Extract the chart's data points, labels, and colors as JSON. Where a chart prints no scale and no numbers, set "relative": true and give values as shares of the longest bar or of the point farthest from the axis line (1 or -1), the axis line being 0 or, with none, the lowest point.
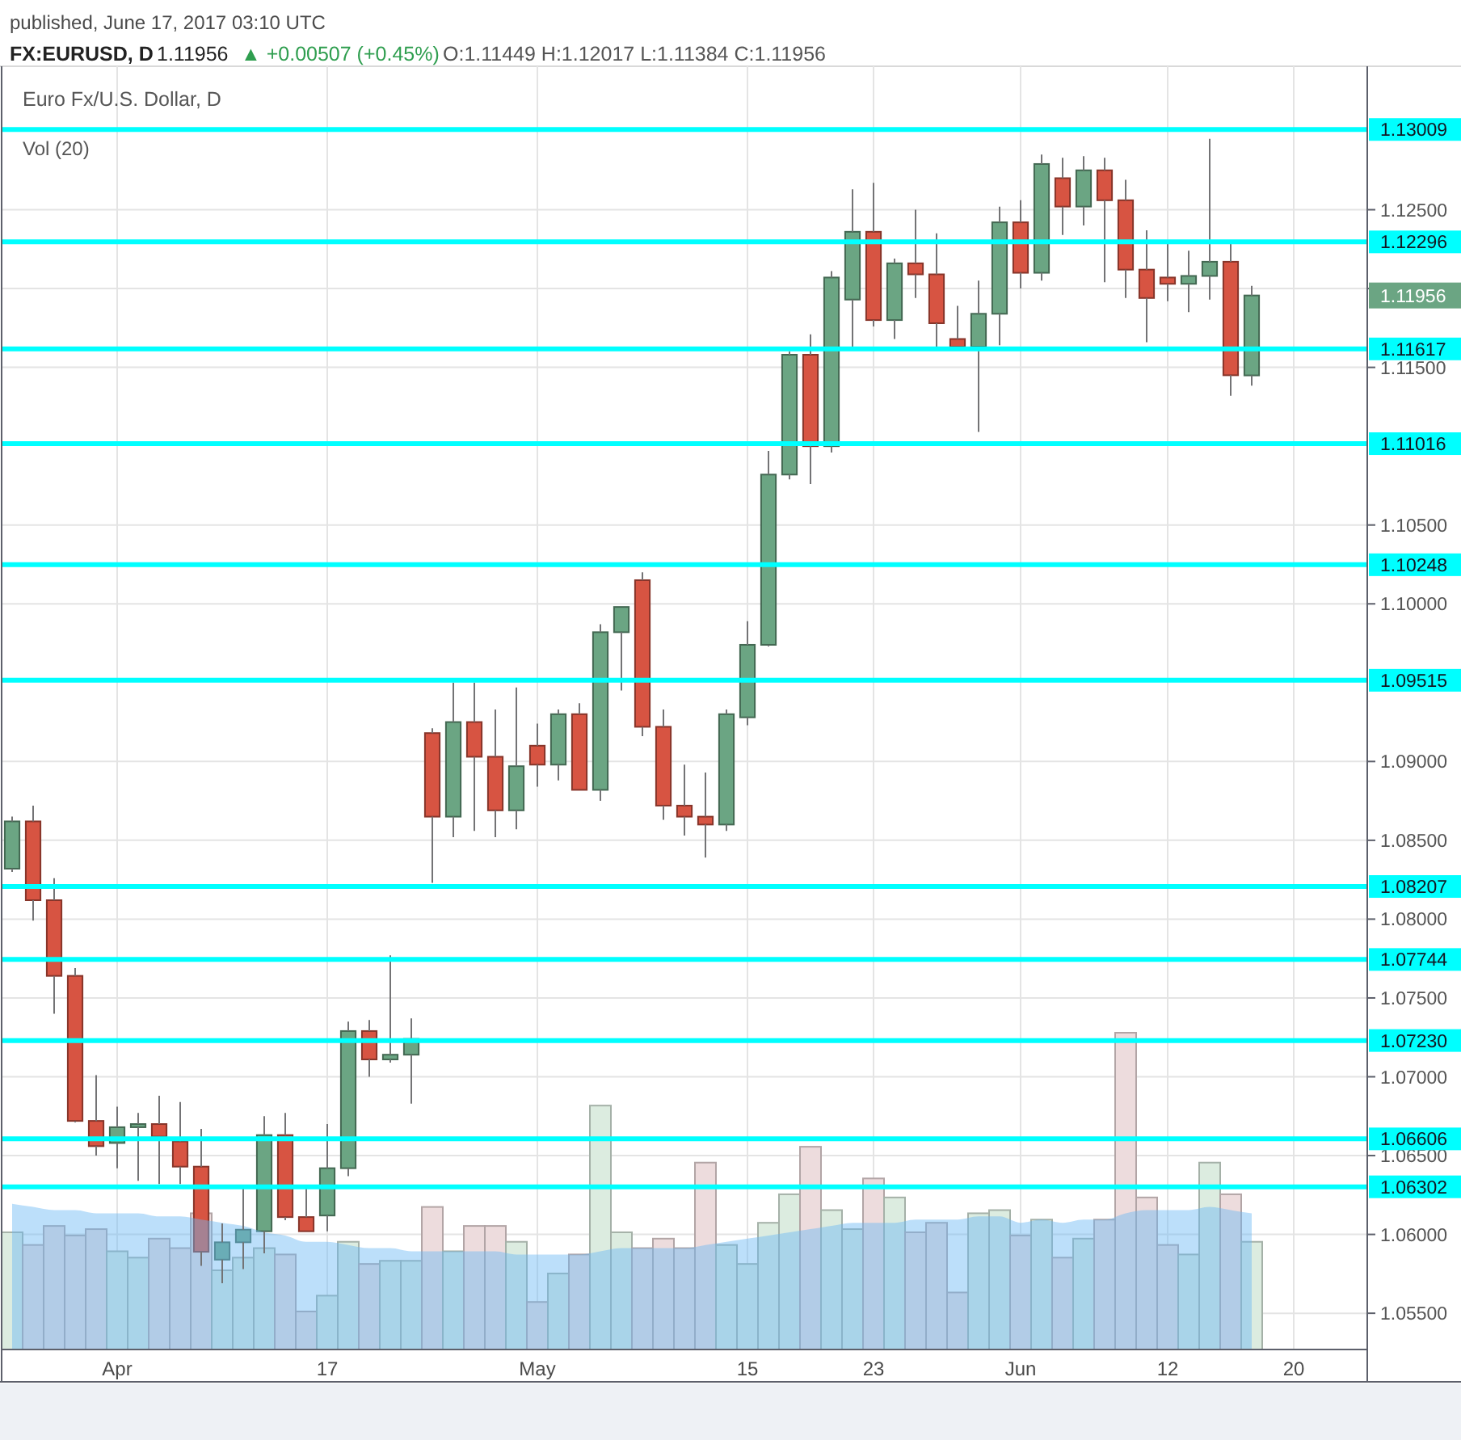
{
  "chart_data": [
    {
      "type": "candlestick",
      "title": "FX:EURUSD, D",
      "subtitle": "Euro Fx/U.S. Dollar, D",
      "categories": [
        null,
        null,
        null,
        null,
        null,
        "Apr",
        null,
        null,
        null,
        null,
        null,
        null,
        null,
        null,
        null,
        "17",
        null,
        null,
        null,
        null,
        null,
        null,
        null,
        null,
        null,
        "May",
        null,
        null,
        null,
        null,
        null,
        null,
        null,
        null,
        null,
        "15",
        null,
        null,
        null,
        null,
        null,
        "23",
        null,
        null,
        null,
        null,
        null,
        null,
        "Jun",
        null,
        null,
        null,
        null,
        null,
        null,
        "12",
        null,
        null,
        null,
        null,
        null,
        "20",
        null,
        null,
        null
      ],
      "ohlc": [
        [
          1.0832,
          1.0865,
          1.083,
          1.0862
        ],
        [
          1.0862,
          1.0872,
          1.0799,
          1.0812
        ],
        [
          1.0812,
          1.0826,
          1.074,
          1.0764
        ],
        [
          1.0764,
          1.0769,
          1.0671,
          1.0672
        ],
        [
          1.0672,
          1.0701,
          1.065,
          1.0656
        ],
        [
          1.0658,
          1.0681,
          1.0642,
          1.0668
        ],
        [
          1.0668,
          1.0677,
          1.0634,
          1.067
        ],
        [
          1.067,
          1.0688,
          1.0632,
          1.0662
        ],
        [
          1.0659,
          1.0684,
          1.0632,
          1.0643
        ],
        [
          1.0643,
          1.0667,
          1.058,
          1.0589
        ],
        [
          1.0584,
          1.0607,
          1.0569,
          1.0595
        ],
        [
          1.0595,
          1.0629,
          1.0578,
          1.0603
        ],
        [
          1.0602,
          1.0675,
          1.0588,
          1.0663
        ],
        [
          1.0663,
          1.0677,
          1.0609,
          1.0611
        ],
        [
          1.0611,
          1.0629,
          1.0602,
          1.0602
        ],
        [
          1.0612,
          1.067,
          1.0602,
          1.0642
        ],
        [
          1.0642,
          1.0735,
          1.0637,
          1.0729
        ],
        [
          1.0729,
          1.0736,
          1.07,
          1.0711
        ],
        [
          1.0711,
          1.0777,
          1.0709,
          1.0714
        ],
        [
          1.0714,
          1.0737,
          1.0683,
          1.0724
        ],
        [
          1.0918,
          1.0921,
          1.0823,
          1.0865
        ],
        [
          1.0865,
          1.095,
          1.0852,
          1.0925
        ],
        [
          1.0925,
          1.095,
          1.0856,
          1.0903
        ],
        [
          1.0903,
          1.0933,
          1.0852,
          1.0869
        ],
        [
          1.0869,
          1.0947,
          1.0857,
          1.0897
        ],
        [
          1.091,
          1.0924,
          1.0884,
          1.0898
        ],
        [
          1.0898,
          1.0933,
          1.0888,
          1.093
        ],
        [
          1.093,
          1.0937,
          1.0882,
          1.0882
        ],
        [
          1.0882,
          1.0987,
          1.0875,
          1.0982
        ],
        [
          1.0982,
          1.0998,
          1.0945,
          1.0998
        ],
        [
          1.1015,
          1.102,
          1.0916,
          1.0922
        ],
        [
          1.0922,
          1.0933,
          1.0863,
          1.0872
        ],
        [
          1.0872,
          1.0898,
          1.0853,
          1.0865
        ],
        [
          1.0865,
          1.0893,
          1.0839,
          1.086
        ],
        [
          1.086,
          1.0933,
          1.0856,
          1.093
        ],
        [
          1.0928,
          1.0989,
          1.0923,
          1.0974
        ],
        [
          1.0974,
          1.1097,
          1.0973,
          1.1082
        ],
        [
          1.1082,
          1.116,
          1.1079,
          1.1158
        ],
        [
          1.1158,
          1.1171,
          1.1076,
          1.11
        ],
        [
          1.11,
          1.1211,
          1.1096,
          1.1207
        ],
        [
          1.1193,
          1.1263,
          1.1163,
          1.1236
        ],
        [
          1.1236,
          1.1267,
          1.1176,
          1.118
        ],
        [
          1.118,
          1.1219,
          1.1168,
          1.1216
        ],
        [
          1.1216,
          1.125,
          1.1194,
          1.1209
        ],
        [
          1.1209,
          1.1235,
          1.1163,
          1.1178
        ],
        [
          1.1168,
          1.1189,
          1.1161,
          1.1163
        ],
        [
          1.1163,
          1.1205,
          1.1109,
          1.1184
        ],
        [
          1.1184,
          1.1252,
          1.1164,
          1.1242
        ],
        [
          1.1242,
          1.1256,
          1.12,
          1.121
        ],
        [
          1.121,
          1.1285,
          1.1205,
          1.1279
        ],
        [
          1.127,
          1.1283,
          1.1234,
          1.1252
        ],
        [
          1.1252,
          1.1284,
          1.124,
          1.1275
        ],
        [
          1.1275,
          1.1283,
          1.1204,
          1.1256
        ],
        [
          1.1256,
          1.1269,
          1.1194,
          1.1212
        ],
        [
          1.1212,
          1.1237,
          1.1166,
          1.1194
        ],
        [
          1.1207,
          1.1229,
          1.1192,
          1.1203
        ],
        [
          1.1203,
          1.1224,
          1.1185,
          1.1208
        ],
        [
          1.1208,
          1.1295,
          1.1193,
          1.1217
        ],
        [
          1.1217,
          1.1229,
          1.1132,
          1.1145
        ],
        [
          1.11449,
          1.12017,
          1.11384,
          1.11956
        ],
        null,
        null,
        null,
        null,
        null
      ],
      "colors": [
        "#6ba583",
        "#d75442",
        "#d75442",
        "#d75442",
        "#d75442",
        "#6ba583",
        "#6ba583",
        "#d75442",
        "#d75442",
        "#d75442",
        "#6ba583",
        "#6ba583",
        "#6ba583",
        "#d75442",
        "#d75442",
        "#6ba583",
        "#6ba583",
        "#d75442",
        "#6ba583",
        "#6ba583",
        "#d75442",
        "#6ba583",
        "#d75442",
        "#d75442",
        "#6ba583",
        "#d75442",
        "#6ba583",
        "#d75442",
        "#6ba583",
        "#6ba583",
        "#d75442",
        "#d75442",
        "#d75442",
        "#d75442",
        "#6ba583",
        "#6ba583",
        "#6ba583",
        "#6ba583",
        "#d75442",
        "#6ba583",
        "#6ba583",
        "#d75442",
        "#6ba583",
        "#d75442",
        "#d75442",
        "#d75442",
        "#6ba583",
        "#6ba583",
        "#d75442",
        "#6ba583",
        "#d75442",
        "#6ba583",
        "#d75442",
        "#d75442",
        "#d75442",
        "#d75442",
        "#6ba583",
        "#6ba583",
        "#d75442",
        "#6ba583",
        null,
        null,
        null,
        null,
        null
      ],
      "ylim": [
        1.0527,
        1.1341
      ],
      "yticks": [
        {
          "value": 1.055,
          "label": "1.05500"
        },
        {
          "value": 1.06,
          "label": "1.06000"
        },
        {
          "value": 1.065,
          "label": "1.06500"
        },
        {
          "value": 1.07,
          "label": "1.07000"
        },
        {
          "value": 1.075,
          "label": "1.07500"
        },
        {
          "value": 1.08,
          "label": "1.08000"
        },
        {
          "value": 1.085,
          "label": "1.08500"
        },
        {
          "value": 1.09,
          "label": "1.09000"
        },
        {
          "value": 1.1,
          "label": "1.10000"
        },
        {
          "value": 1.105,
          "label": "1.10500"
        },
        {
          "value": 1.115,
          "label": "1.11500"
        },
        {
          "value": 1.12,
          "label": null
        },
        {
          "value": 1.125,
          "label": "1.12500"
        }
      ],
      "grid": true,
      "ref_lines": [
        {
          "axis": "y",
          "value": 1.13009,
          "label": "1.13009",
          "color": "#00ffff"
        },
        {
          "axis": "y",
          "value": 1.12296,
          "label": "1.12296",
          "color": "#00ffff"
        },
        {
          "axis": "y",
          "value": 1.11617,
          "label": "1.11617",
          "color": "#00ffff"
        },
        {
          "axis": "y",
          "value": 1.11016,
          "label": "1.11016",
          "color": "#00ffff"
        },
        {
          "axis": "y",
          "value": 1.10248,
          "label": "1.10248",
          "color": "#00ffff"
        },
        {
          "axis": "y",
          "value": 1.09515,
          "label": "1.09515",
          "color": "#00ffff"
        },
        {
          "axis": "y",
          "value": 1.08207,
          "label": "1.08207",
          "color": "#00ffff"
        },
        {
          "axis": "y",
          "value": 1.07744,
          "label": "1.07744",
          "color": "#00ffff"
        },
        {
          "axis": "y",
          "value": 1.0723,
          "label": "1.07230",
          "color": "#00ffff"
        },
        {
          "axis": "y",
          "value": 1.06606,
          "label": "1.06606",
          "color": "#00ffff"
        },
        {
          "axis": "y",
          "value": 1.06302,
          "label": "1.06302",
          "color": "#00ffff"
        }
      ],
      "annotations": [
        "published, June 17, 2017 03:10 UTC",
        "1.11956",
        "▲ +0.00507 (+0.45%)",
        "O:1.11449 H:1.12017 L:1.11384 C:1.11956",
        "1.11956"
      ]
    },
    {
      "type": "bar",
      "relative": true,
      "title": "Vol (20)",
      "categories": [
        null,
        null,
        null,
        null,
        null,
        null,
        null,
        null,
        null,
        null,
        null,
        null,
        null,
        null,
        null,
        null,
        null,
        null,
        null,
        null,
        null,
        null,
        null,
        null,
        null,
        null,
        null,
        null,
        null,
        null,
        null,
        null,
        null,
        null,
        null,
        null,
        null,
        null,
        null,
        null,
        null,
        null,
        null,
        null,
        null,
        null,
        null,
        null,
        null,
        null,
        null,
        null,
        null,
        null,
        null,
        null,
        null,
        null,
        null,
        null,
        null,
        null,
        null,
        null,
        null
      ],
      "series": [
        {
          "type": "bar",
          "colors": [
            "#dcece0",
            "#eddcdd",
            "#eddcdd",
            "#eddcdd",
            "#eddcdd",
            "#dcece0",
            "#dcece0",
            "#eddcdd",
            "#eddcdd",
            "#eddcdd",
            "#dcece0",
            "#dcece0",
            "#dcece0",
            "#eddcdd",
            "#eddcdd",
            "#dcece0",
            "#dcece0",
            "#eddcdd",
            "#dcece0",
            "#dcece0",
            "#eddcdd",
            "#dcece0",
            "#eddcdd",
            "#eddcdd",
            "#dcece0",
            "#eddcdd",
            "#dcece0",
            "#eddcdd",
            "#dcece0",
            "#dcece0",
            "#eddcdd",
            "#eddcdd",
            "#eddcdd",
            "#eddcdd",
            "#dcece0",
            "#dcece0",
            "#dcece0",
            "#dcece0",
            "#eddcdd",
            "#dcece0",
            "#dcece0",
            "#eddcdd",
            "#dcece0",
            "#eddcdd",
            "#eddcdd",
            "#eddcdd",
            "#dcece0",
            "#dcece0",
            "#eddcdd",
            "#dcece0",
            "#eddcdd",
            "#dcece0",
            "#eddcdd",
            "#eddcdd",
            "#eddcdd",
            "#eddcdd",
            "#dcece0",
            "#dcece0",
            "#eddcdd",
            "#dcece0",
            null,
            null,
            null,
            null,
            null
          ],
          "values": [
            0.37,
            0.33,
            0.39,
            0.36,
            0.38,
            0.31,
            0.29,
            0.35,
            0.32,
            0.43,
            0.25,
            0.29,
            0.32,
            0.3,
            0.12,
            0.17,
            0.34,
            0.27,
            0.28,
            0.28,
            0.45,
            0.31,
            0.39,
            0.39,
            0.34,
            0.15,
            0.24,
            0.3,
            0.77,
            0.37,
            0.32,
            0.35,
            0.32,
            0.59,
            0.33,
            0.27,
            0.4,
            0.49,
            0.64,
            0.44,
            0.38,
            0.54,
            0.48,
            0.37,
            0.4,
            0.18,
            0.43,
            0.44,
            0.36,
            0.41,
            0.29,
            0.35,
            0.41,
            1,
            0.48,
            0.33,
            0.3,
            0.59,
            0.49,
            0.34,
            null,
            null,
            null,
            null,
            null
          ]
        },
        {
          "type": "area",
          "color": "#6ab9f5",
          "values": [
            0.46,
            0.45,
            0.44,
            0.44,
            0.43,
            0.43,
            0.43,
            0.42,
            0.42,
            0.41,
            0.4,
            0.39,
            0.37,
            0.36,
            0.34,
            0.34,
            0.33,
            0.32,
            0.32,
            0.31,
            0.31,
            0.31,
            0.31,
            0.31,
            0.3,
            0.3,
            0.3,
            0.3,
            0.31,
            0.32,
            0.32,
            0.32,
            0.32,
            0.33,
            0.34,
            0.35,
            0.36,
            0.37,
            0.38,
            0.39,
            0.4,
            0.4,
            0.4,
            0.41,
            0.41,
            0.41,
            0.42,
            0.42,
            0.4,
            0.41,
            0.4,
            0.41,
            0.41,
            0.43,
            0.44,
            0.44,
            0.44,
            0.45,
            0.44,
            0.43,
            null,
            null,
            null,
            null,
            null
          ]
        }
      ]
    }
  ]
}
